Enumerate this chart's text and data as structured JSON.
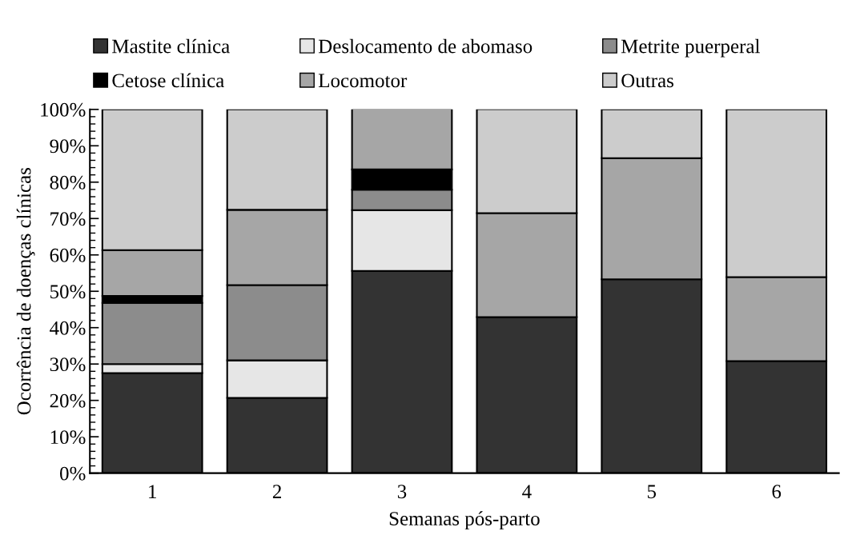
{
  "chart_data": {
    "type": "bar",
    "stacked": true,
    "xlabel": "Semanas pós-parto",
    "ylabel": "Ocorrência de doenças clínicas",
    "categories": [
      "1",
      "2",
      "3",
      "4",
      "5",
      "6"
    ],
    "series": [
      {
        "name": "Mastite clínica",
        "color": "#333333",
        "values": [
          27.5,
          20.7,
          55.6,
          42.9,
          53.3,
          30.8
        ]
      },
      {
        "name": "Deslocamento de abomaso",
        "color": "#e6e6e6",
        "values": [
          2.5,
          10.3,
          16.7,
          0,
          0,
          0
        ]
      },
      {
        "name": "Metrite puerperal",
        "color": "#8c8c8c",
        "values": [
          16.8,
          20.7,
          5.6,
          0,
          0,
          0
        ]
      },
      {
        "name": "Cetose clínica",
        "color": "#000000",
        "values": [
          1.9,
          0,
          5.6,
          0,
          0,
          0
        ]
      },
      {
        "name": "Locomotor",
        "color": "#a6a6a6",
        "values": [
          12.6,
          20.7,
          16.7,
          28.6,
          33.3,
          23.1
        ]
      },
      {
        "name": "Outras",
        "color": "#cccccc",
        "values": [
          38.7,
          27.6,
          0,
          28.6,
          13.4,
          46.1
        ]
      }
    ],
    "ylim": [
      0,
      100
    ],
    "yticks": [
      {
        "value": 0,
        "label": "0%"
      },
      {
        "value": 10,
        "label": "10%"
      },
      {
        "value": 20,
        "label": "20%"
      },
      {
        "value": 30,
        "label": "30%"
      },
      {
        "value": 40,
        "label": "40%"
      },
      {
        "value": 50,
        "label": "50%"
      },
      {
        "value": 60,
        "label": "60%"
      },
      {
        "value": 70,
        "label": "70%"
      },
      {
        "value": 80,
        "label": "80%"
      },
      {
        "value": 90,
        "label": "90%"
      },
      {
        "value": 100,
        "label": "100%"
      }
    ],
    "grid": false,
    "legend": "top"
  }
}
